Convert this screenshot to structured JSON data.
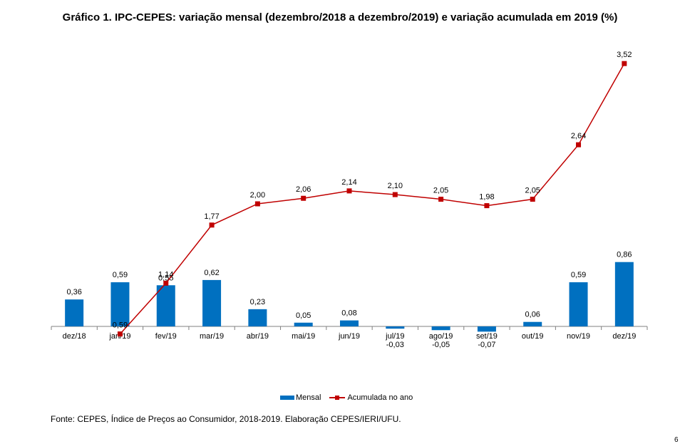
{
  "chart_data": {
    "type": "bar+line",
    "title": "Gráfico 1. IPC-CEPES: variação mensal (dezembro/2018 a dezembro/2019) e variação acumulada em 2019 (%)",
    "categories": [
      "dez/18",
      "jan/19",
      "fev/19",
      "mar/19",
      "abr/19",
      "mai/19",
      "jun/19",
      "jul/19",
      "ago/19",
      "set/19",
      "out/19",
      "nov/19",
      "dez/19"
    ],
    "series": [
      {
        "name": "Mensal",
        "type": "bar",
        "color": "#0070C0",
        "values": [
          0.36,
          0.59,
          0.55,
          0.62,
          0.23,
          0.05,
          0.08,
          -0.03,
          -0.05,
          -0.07,
          0.06,
          0.59,
          0.86
        ],
        "labels": [
          "0,36",
          "0,59",
          "0,55",
          "0,62",
          "0,23",
          "0,05",
          "0,08",
          "-0,03",
          "-0,05",
          "-0,07",
          "0,06",
          "0,59",
          "0,86"
        ]
      },
      {
        "name": "Acumulada no ano",
        "type": "line",
        "color": "#C00000",
        "values": [
          null,
          0.59,
          1.14,
          1.77,
          2.0,
          2.06,
          2.14,
          2.1,
          2.05,
          1.98,
          2.05,
          2.64,
          3.52
        ],
        "labels": [
          "",
          "0,59",
          "1,14",
          "1,77",
          "2,00",
          "2,06",
          "2,14",
          "2,10",
          "2,05",
          "1,98",
          "2,05",
          "2,64",
          "3,52"
        ]
      }
    ],
    "legend_position": "bottom",
    "grid": false
  },
  "source": "Fonte: CEPES, Índice de Preços ao Consumidor, 2018-2019. Elaboração CEPES/IERI/UFU.",
  "page_number": "6"
}
